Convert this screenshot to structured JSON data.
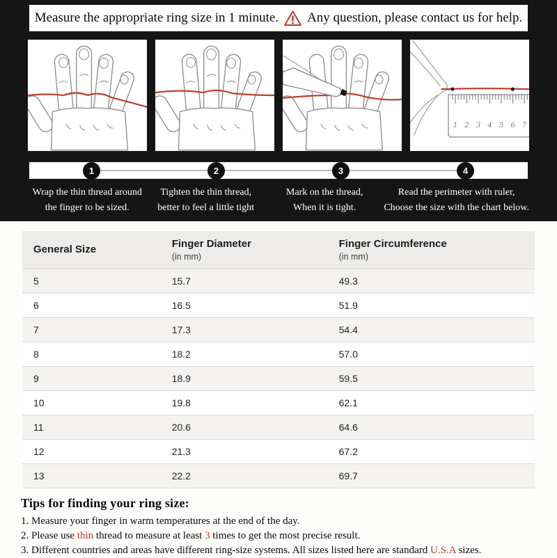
{
  "colors": {
    "accent_red": "#c0392b",
    "thread_red": "#bf4030",
    "top_bg": "#151515",
    "header_bg": "#edecea",
    "alt_row_bg": "#f4f3f1"
  },
  "banner": {
    "text_before_icon": "Measure the appropriate ring size in 1 minute.",
    "icon": "warning-triangle",
    "text_after_icon": "Any question, please contact us for help."
  },
  "steps": [
    {
      "number": "1",
      "line1": "Wrap the thin thread around",
      "line2": "the finger to be sized."
    },
    {
      "number": "2",
      "line1": "Tighten the thin thread,",
      "line2": "better to feel a little tight"
    },
    {
      "number": "3",
      "line1": "Mark on the thread,",
      "line2": "When it is tight."
    },
    {
      "number": "4",
      "line1": "Read the perimeter with ruler,",
      "line2": "Choose the size with the chart below."
    }
  ],
  "illustrations": {
    "panel1": "hand-with-thread-wrapped",
    "panel2": "hand-with-thread-tightened",
    "panel3": "hand-marking-thread-with-pen",
    "panel4": "thread-measured-with-ruler",
    "ruler_numbers": [
      "1",
      "2",
      "3",
      "4",
      "5",
      "6",
      "7"
    ]
  },
  "table": {
    "headers": [
      {
        "title": "General Size",
        "sub": ""
      },
      {
        "title": "Finger Diameter",
        "sub": "(in mm)"
      },
      {
        "title": "Finger Circumference",
        "sub": "(in mm)"
      }
    ],
    "rows": [
      [
        "5",
        "15.7",
        "49.3"
      ],
      [
        "6",
        "16.5",
        "51.9"
      ],
      [
        "7",
        "17.3",
        "54.4"
      ],
      [
        "8",
        "18.2",
        "57.0"
      ],
      [
        "9",
        "18.9",
        "59.5"
      ],
      [
        "10",
        "19.8",
        "62.1"
      ],
      [
        "11",
        "20.6",
        "64.6"
      ],
      [
        "12",
        "21.3",
        "67.2"
      ],
      [
        "13",
        "22.2",
        "69.7"
      ]
    ]
  },
  "tips": {
    "title": "Tips for finding your ring size:",
    "lines": [
      [
        {
          "t": "1. Measure your finger in warm temperatures at the end of the day."
        }
      ],
      [
        {
          "t": "2. Please use "
        },
        {
          "t": "thin",
          "red": true
        },
        {
          "t": " thread to measure at least "
        },
        {
          "t": "3",
          "red": true
        },
        {
          "t": " times to get the most precise result."
        }
      ],
      [
        {
          "t": "3. Different countries and areas have different ring-size systems. All sizes listed here are standard "
        },
        {
          "t": "U.S.A",
          "red": true
        },
        {
          "t": " sizes."
        }
      ]
    ]
  }
}
